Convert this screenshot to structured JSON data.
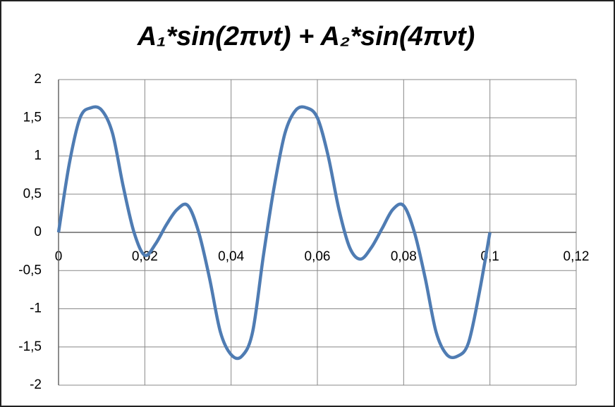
{
  "chart_data": {
    "type": "line",
    "title": "A₁*sin(2πνt) + A₂*sin(4πνt)",
    "x": [
      0,
      0.0025,
      0.005,
      0.0075,
      0.01,
      0.0125,
      0.015,
      0.0175,
      0.02,
      0.0225,
      0.025,
      0.0275,
      0.03,
      0.0325,
      0.035,
      0.0375,
      0.04,
      0.0425,
      0.045,
      0.0475,
      0.05,
      0.0525,
      0.055,
      0.0575,
      0.06,
      0.0625,
      0.065,
      0.0675,
      0.07,
      0.0725,
      0.075,
      0.0775,
      0.08,
      0.0825,
      0.085,
      0.0875,
      0.09,
      0.0925,
      0.095,
      0.0975,
      0.1
    ],
    "series": [
      {
        "color": "#4f7cb3",
        "values": [
          0,
          0.9,
          1.5,
          1.63,
          1.6,
          1.3,
          0.6,
          0.0,
          -0.3,
          -0.15,
          0.1,
          0.3,
          0.35,
          0.0,
          -0.6,
          -1.3,
          -1.6,
          -1.62,
          -1.3,
          -0.3,
          0.6,
          1.3,
          1.6,
          1.63,
          1.5,
          1.0,
          0.3,
          -0.2,
          -0.35,
          -0.2,
          0.05,
          0.3,
          0.35,
          0.0,
          -0.6,
          -1.3,
          -1.6,
          -1.62,
          -1.45,
          -0.8,
          0
        ]
      }
    ],
    "xlim": [
      0,
      0.12
    ],
    "xticks": [
      0,
      {
        "value": 0.02,
        "label": "0,02"
      },
      {
        "value": 0.04,
        "label": "0,04"
      },
      {
        "value": 0.06,
        "label": "0,06"
      },
      {
        "value": 0.08,
        "label": "0,08"
      },
      {
        "value": 0.1,
        "label": "0,1"
      },
      {
        "value": 0.12,
        "label": "0,12"
      }
    ],
    "ylim": [
      -2,
      2
    ],
    "yticks": [
      2,
      {
        "value": 1.5,
        "label": "1,5"
      },
      1,
      {
        "value": 0.5,
        "label": "0,5"
      },
      0,
      {
        "value": -0.5,
        "label": "-0,5"
      },
      -1,
      {
        "value": -1.5,
        "label": "-1,5"
      },
      -2
    ],
    "grid": true
  }
}
